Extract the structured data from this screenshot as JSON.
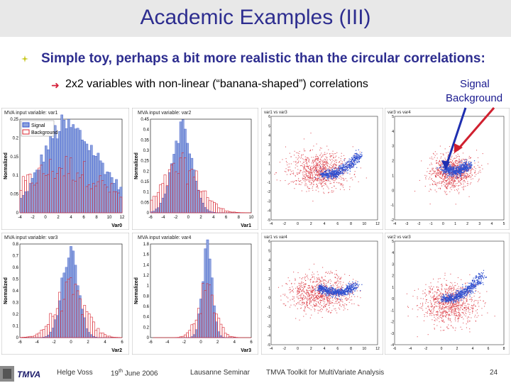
{
  "slide": {
    "title": "Academic Examples (III)",
    "bullet1": "Simple toy, perhaps a bit more realistic than the circular correlations:",
    "bullet2": "2x2 variables with non-linear (“banana-shaped”) correlations",
    "legend_signal": "Signal",
    "legend_background": "Background"
  },
  "colors": {
    "title": "#2d2d8f",
    "signal": "#2f4fcf",
    "background": "#d8242f",
    "bullet_arrow": "#d4203a"
  },
  "histograms": [
    {
      "title": "MVA input variable: var1",
      "ylabel": "Normalized",
      "xlabel": "Var0",
      "yticks": [
        "0",
        "0.05",
        "0.1",
        "0.15",
        "0.2",
        "0.25"
      ],
      "xticks": [
        "-4",
        "-2",
        "0",
        "2",
        "4",
        "6",
        "8",
        "10",
        "12"
      ],
      "legend": [
        "Signal",
        "Background"
      ]
    },
    {
      "title": "MVA input variable: var2",
      "ylabel": "Normalized",
      "xlabel": "Var1",
      "yticks": [
        "0",
        "0.05",
        "0.1",
        "0.15",
        "0.2",
        "0.25",
        "0.3",
        "0.35",
        "0.4",
        "0.45"
      ],
      "xticks": [
        "-6",
        "-4",
        "-2",
        "0",
        "2",
        "4",
        "6",
        "8",
        "10"
      ]
    },
    {
      "title": "MVA input variable: var3",
      "ylabel": "Normalized",
      "xlabel": "Var2",
      "yticks": [
        "0",
        "0.1",
        "0.2",
        "0.3",
        "0.4",
        "0.5",
        "0.6",
        "0.7",
        "0.8"
      ],
      "xticks": [
        "-6",
        "-4",
        "-2",
        "0",
        "2",
        "4",
        "6"
      ]
    },
    {
      "title": "MVA input variable: var4",
      "ylabel": "Normalized",
      "xlabel": "Var3",
      "yticks": [
        "0",
        "0.2",
        "0.4",
        "0.6",
        "0.8",
        "1",
        "1.2",
        "1.4",
        "1.6",
        "1.8"
      ],
      "xticks": [
        "-6",
        "-4",
        "-2",
        "0",
        "2",
        "4",
        "6"
      ]
    }
  ],
  "scatters": [
    {
      "title": "var1 vs var3",
      "yticks": [
        "-5",
        "-4",
        "-3",
        "-2",
        "-1",
        "0",
        "1",
        "2",
        "3",
        "4",
        "5",
        "6"
      ],
      "xticks": [
        "-4",
        "-2",
        "0",
        "2",
        "4",
        "6",
        "8",
        "10",
        "12"
      ]
    },
    {
      "title": "var3 vs var4",
      "yticks": [
        "-2",
        "-1",
        "0",
        "1",
        "2",
        "3",
        "4",
        "5"
      ],
      "xticks": [
        "-4",
        "-3",
        "-2",
        "-1",
        "0",
        "1",
        "2",
        "3",
        "4",
        "5"
      ]
    },
    {
      "title": "var1 vs var4",
      "yticks": [
        "-5",
        "-4",
        "-3",
        "-2",
        "-1",
        "0",
        "1",
        "2",
        "3",
        "4",
        "5",
        "6"
      ],
      "xticks": [
        "-4",
        "-2",
        "0",
        "2",
        "4",
        "6",
        "8",
        "10",
        "12"
      ]
    },
    {
      "title": "var2 vs var3",
      "yticks": [
        "-4",
        "-3",
        "-2",
        "-1",
        "0",
        "1",
        "2",
        "3",
        "4",
        "5"
      ],
      "xticks": [
        "-6",
        "-4",
        "-2",
        "0",
        "2",
        "4",
        "6",
        "8"
      ]
    }
  ],
  "footer": {
    "logo": "TMVA",
    "author": "Helge Voss",
    "date_pre": "19",
    "date_sup": "th",
    "date_post": " June 2006",
    "event": "Lausanne Seminar",
    "subject": "TMVA Toolkit for MultiVariate Analysis",
    "page": "24"
  }
}
